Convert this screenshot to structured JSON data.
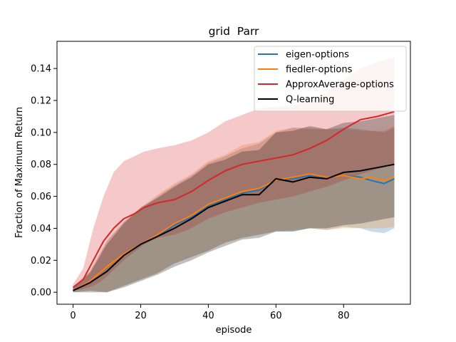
{
  "chart_data": {
    "type": "line",
    "title": "grid  Parr",
    "xlabel": "episode",
    "ylabel": "Fraction of Maximum Return",
    "xlim": [
      -4.75,
      99.75
    ],
    "ylim": [
      -0.0075,
      0.157
    ],
    "xticks": [
      0,
      20,
      40,
      60,
      80
    ],
    "yticks": [
      0.0,
      0.02,
      0.04,
      0.06,
      0.08,
      0.1,
      0.12,
      0.14
    ],
    "ytick_labels": [
      "0.00",
      "0.02",
      "0.04",
      "0.06",
      "0.08",
      "0.10",
      "0.12",
      "0.14"
    ],
    "legend_position": "top-right",
    "grid": false,
    "series": [
      {
        "name": "eigen-options",
        "color": "#1f77b4",
        "x": [
          0,
          5,
          10,
          15,
          20,
          25,
          30,
          35,
          40,
          45,
          50,
          55,
          60,
          65,
          70,
          75,
          80,
          85,
          88,
          92,
          95
        ],
        "mean": [
          0.001,
          0.007,
          0.016,
          0.024,
          0.03,
          0.035,
          0.042,
          0.047,
          0.054,
          0.058,
          0.062,
          0.064,
          0.07,
          0.071,
          0.073,
          0.072,
          0.073,
          0.072,
          0.07,
          0.068,
          0.071
        ],
        "lower": [
          0.0,
          0.001,
          0.0,
          0.004,
          0.008,
          0.012,
          0.018,
          0.022,
          0.026,
          0.031,
          0.034,
          0.036,
          0.038,
          0.038,
          0.04,
          0.039,
          0.041,
          0.04,
          0.038,
          0.037,
          0.04
        ],
        "upper": [
          0.003,
          0.013,
          0.032,
          0.044,
          0.052,
          0.06,
          0.067,
          0.073,
          0.081,
          0.085,
          0.09,
          0.093,
          0.1,
          0.103,
          0.102,
          0.102,
          0.103,
          0.102,
          0.101,
          0.1,
          0.103
        ]
      },
      {
        "name": "fiedler-options",
        "color": "#ff7f0e",
        "x": [
          0,
          5,
          10,
          15,
          20,
          25,
          30,
          35,
          40,
          45,
          50,
          55,
          60,
          65,
          70,
          75,
          80,
          85,
          88,
          92,
          95
        ],
        "mean": [
          0.001,
          0.007,
          0.016,
          0.024,
          0.03,
          0.036,
          0.043,
          0.048,
          0.055,
          0.059,
          0.063,
          0.065,
          0.07,
          0.072,
          0.074,
          0.072,
          0.073,
          0.071,
          0.072,
          0.07,
          0.072
        ],
        "lower": [
          0.0,
          0.001,
          0.0,
          0.004,
          0.008,
          0.012,
          0.018,
          0.022,
          0.026,
          0.031,
          0.034,
          0.036,
          0.038,
          0.039,
          0.04,
          0.039,
          0.04,
          0.04,
          0.04,
          0.04,
          0.041
        ],
        "upper": [
          0.003,
          0.013,
          0.032,
          0.044,
          0.053,
          0.061,
          0.068,
          0.074,
          0.082,
          0.086,
          0.092,
          0.094,
          0.101,
          0.103,
          0.103,
          0.102,
          0.102,
          0.101,
          0.101,
          0.101,
          0.104
        ]
      },
      {
        "name": "ApproxAverage-options",
        "color": "#d62728",
        "x": [
          0,
          3,
          6,
          9,
          12,
          15,
          18,
          21,
          25,
          30,
          35,
          40,
          45,
          50,
          55,
          60,
          65,
          70,
          75,
          80,
          85,
          90,
          95
        ],
        "mean": [
          0.003,
          0.008,
          0.02,
          0.032,
          0.04,
          0.046,
          0.049,
          0.053,
          0.056,
          0.058,
          0.063,
          0.07,
          0.076,
          0.08,
          0.082,
          0.084,
          0.086,
          0.09,
          0.095,
          0.102,
          0.108,
          0.11,
          0.113
        ],
        "lower": [
          0.001,
          0.002,
          0.004,
          0.008,
          0.014,
          0.02,
          0.025,
          0.03,
          0.034,
          0.036,
          0.04,
          0.046,
          0.05,
          0.053,
          0.056,
          0.058,
          0.06,
          0.063,
          0.066,
          0.07,
          0.074,
          0.077,
          0.08
        ],
        "upper": [
          0.005,
          0.015,
          0.04,
          0.06,
          0.075,
          0.082,
          0.085,
          0.088,
          0.09,
          0.092,
          0.095,
          0.1,
          0.107,
          0.111,
          0.115,
          0.116,
          0.117,
          0.12,
          0.125,
          0.133,
          0.14,
          0.144,
          0.147
        ]
      },
      {
        "name": "Q-learning",
        "color": "#000000",
        "x": [
          0,
          5,
          10,
          15,
          20,
          25,
          30,
          35,
          40,
          45,
          50,
          55,
          60,
          65,
          70,
          75,
          80,
          85,
          90,
          95
        ],
        "mean": [
          0.001,
          0.006,
          0.013,
          0.023,
          0.03,
          0.035,
          0.04,
          0.046,
          0.053,
          0.057,
          0.061,
          0.061,
          0.071,
          0.069,
          0.072,
          0.071,
          0.075,
          0.076,
          0.078,
          0.08
        ],
        "lower": [
          0.0,
          0.0,
          0.0,
          0.003,
          0.007,
          0.011,
          0.016,
          0.02,
          0.025,
          0.029,
          0.033,
          0.034,
          0.038,
          0.038,
          0.04,
          0.04,
          0.042,
          0.043,
          0.045,
          0.047
        ],
        "upper": [
          0.003,
          0.012,
          0.03,
          0.043,
          0.053,
          0.059,
          0.066,
          0.072,
          0.08,
          0.083,
          0.088,
          0.089,
          0.1,
          0.101,
          0.104,
          0.102,
          0.106,
          0.107,
          0.109,
          0.111
        ]
      }
    ]
  }
}
